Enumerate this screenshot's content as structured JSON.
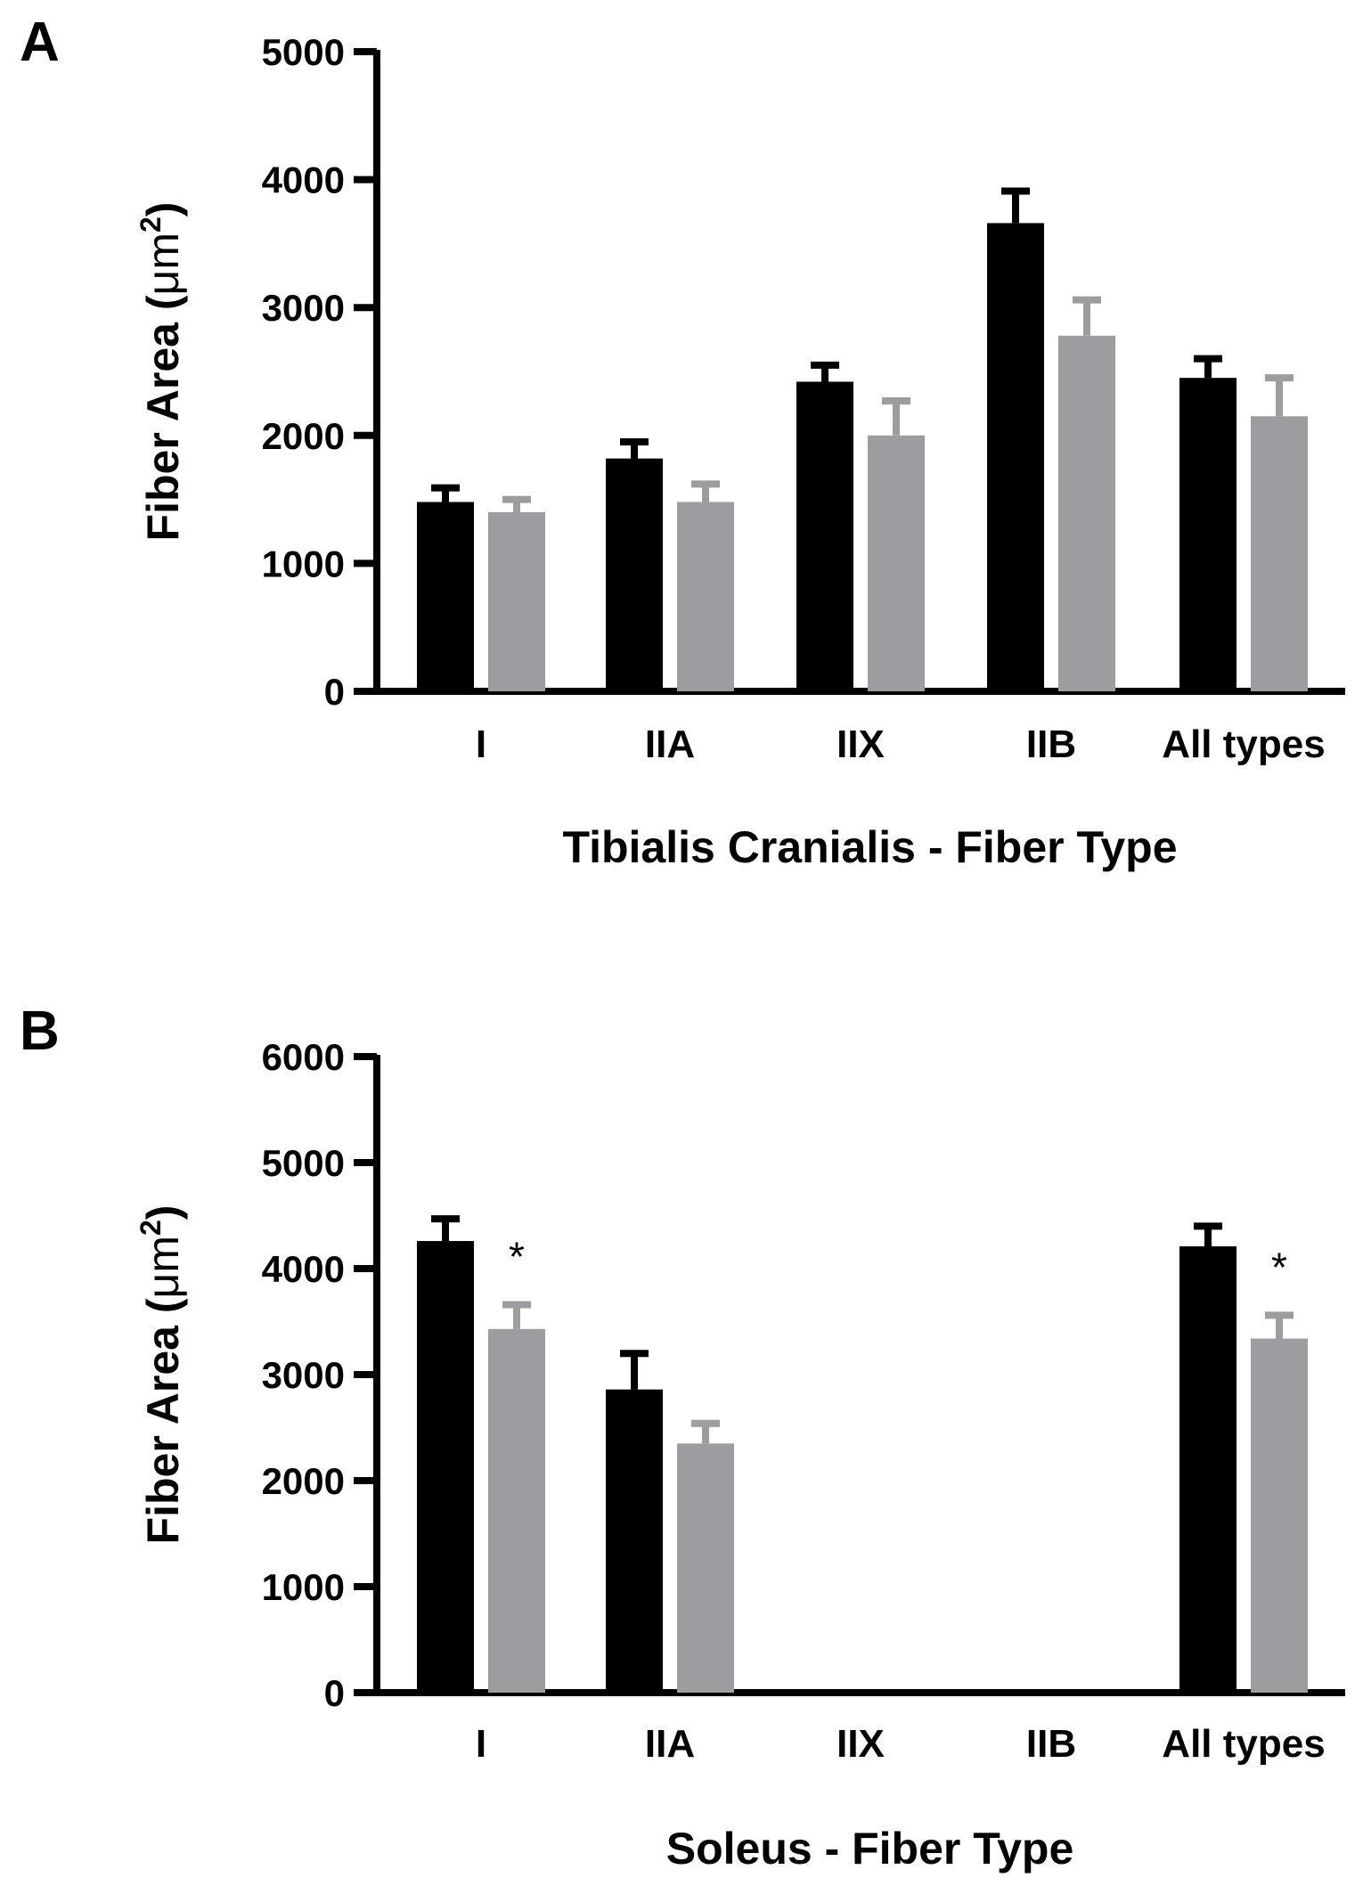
{
  "chart_data": [
    {
      "type": "bar",
      "panel_label": "A",
      "xlabel": "Tibialis Cranialis - Fiber Type",
      "ylabel": {
        "prefix": "Fiber Area (",
        "unit": "μm",
        "sup": "2",
        "suffix": ")"
      },
      "categories": [
        "I",
        "IIA",
        "IIX",
        "IIB",
        "All types"
      ],
      "ylim": [
        0,
        5000
      ],
      "yticks": [
        0,
        1000,
        2000,
        3000,
        4000,
        5000
      ],
      "series": [
        {
          "name": "black",
          "color": "#000000",
          "values": [
            1480,
            1820,
            2420,
            3660,
            2450
          ],
          "errors": [
            110,
            130,
            130,
            250,
            150
          ]
        },
        {
          "name": "gray",
          "color": "#9c9ca1",
          "values": [
            1400,
            1480,
            2000,
            2780,
            2150
          ],
          "errors": [
            100,
            140,
            270,
            280,
            300
          ]
        }
      ],
      "annotations": []
    },
    {
      "type": "bar",
      "panel_label": "B",
      "xlabel": "Soleus - Fiber Type",
      "ylabel": {
        "prefix": "Fiber Area (",
        "unit": "μm",
        "sup": "2",
        "suffix": ")"
      },
      "categories": [
        "I",
        "IIA",
        "IIX",
        "IIB",
        "All types"
      ],
      "ylim": [
        0,
        6000
      ],
      "yticks": [
        0,
        1000,
        2000,
        3000,
        4000,
        5000,
        6000
      ],
      "series": [
        {
          "name": "black",
          "color": "#000000",
          "values": [
            4260,
            2860,
            null,
            null,
            4210
          ],
          "errors": [
            210,
            340,
            null,
            null,
            190
          ]
        },
        {
          "name": "gray",
          "color": "#9c9ca1",
          "values": [
            3430,
            2350,
            null,
            null,
            3340
          ],
          "errors": [
            230,
            190,
            null,
            null,
            220
          ]
        }
      ],
      "annotations": [
        {
          "category": "I",
          "series": "gray",
          "text": "*"
        },
        {
          "category": "All types",
          "series": "gray",
          "text": "*"
        }
      ]
    }
  ]
}
